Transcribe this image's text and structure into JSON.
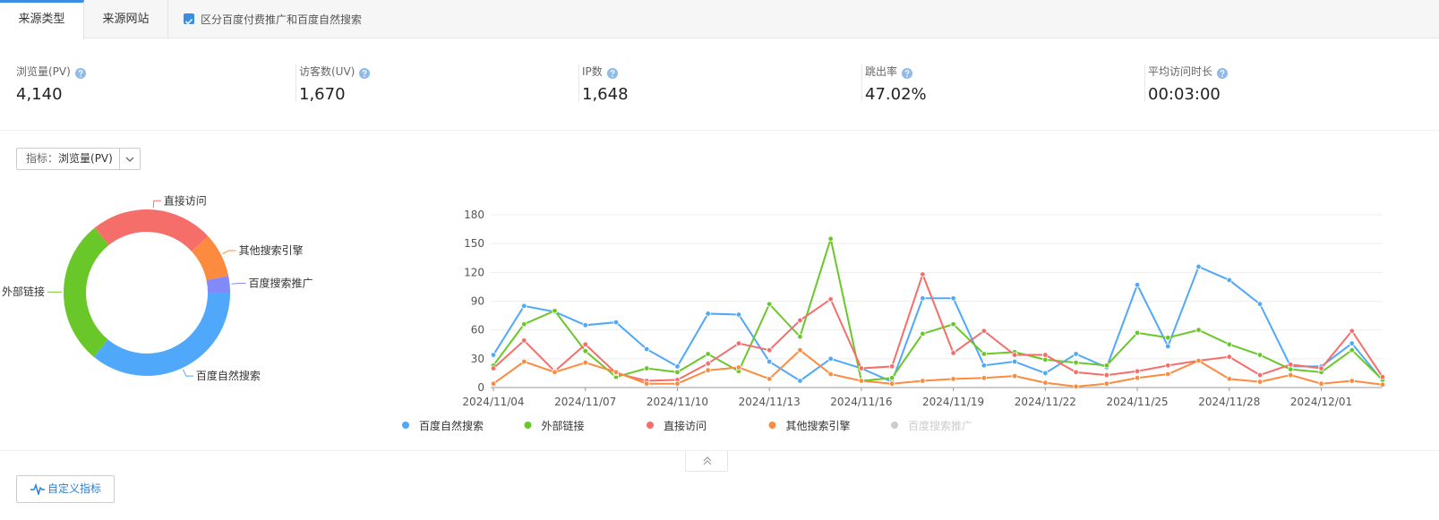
{
  "tabs": [
    "来源类型",
    "来源网站"
  ],
  "checkbox_label": "区分百度付费推广和百度自然搜索",
  "metrics": [
    {
      "label": "浏览量(PV)",
      "value": "4,140"
    },
    {
      "label": "访客数(UV)",
      "value": "1,670"
    },
    {
      "label": "IP数",
      "value": "1,648"
    },
    {
      "label": "跳出率",
      "value": "47.02%"
    },
    {
      "label": "平均访问时长",
      "value": "00:03:00"
    }
  ],
  "selector": {
    "label": "指标：",
    "value": "浏览量(PV)"
  },
  "custom_button": "自定义指标",
  "chart_data": [
    {
      "type": "pie",
      "categories": [
        "百度自然搜索",
        "外部链接",
        "直接访问",
        "其他搜索引擎",
        "百度搜索推广"
      ],
      "values": [
        1490,
        1170,
        990,
        355,
        135
      ],
      "colors": [
        "#4fa8f9",
        "#6ac72a",
        "#f56e6a",
        "#fc8b40",
        "#818af8"
      ]
    },
    {
      "type": "line",
      "categories": [
        "2024/11/04",
        null,
        null,
        "2024/11/07",
        null,
        null,
        "2024/11/10",
        null,
        null,
        "2024/11/13",
        null,
        null,
        "2024/11/16",
        null,
        null,
        "2024/11/19",
        null,
        null,
        "2024/11/22",
        null,
        null,
        "2024/11/25",
        null,
        null,
        "2024/11/28",
        null,
        null,
        "2024/12/01",
        null,
        null
      ],
      "ylim": [
        0,
        180
      ],
      "yticks": [
        0,
        30,
        60,
        90,
        120,
        150,
        180
      ],
      "grid": true,
      "series": [
        {
          "name": "百度自然搜索",
          "color": "#4fa8f9",
          "visible": true,
          "values": [
            34,
            85,
            79,
            65,
            68,
            40,
            22,
            77,
            76,
            27,
            7,
            30,
            20,
            6,
            93,
            93,
            23,
            27,
            15,
            35,
            21,
            107,
            43,
            126,
            112,
            87,
            22,
            22,
            46,
            7
          ]
        },
        {
          "name": "外部链接",
          "color": "#6ac72a",
          "visible": true,
          "values": [
            23,
            66,
            80,
            38,
            11,
            20,
            16,
            35,
            17,
            87,
            53,
            155,
            7,
            10,
            56,
            66,
            35,
            37,
            29,
            26,
            23,
            57,
            52,
            60,
            45,
            34,
            19,
            16,
            39,
            8
          ]
        },
        {
          "name": "直接访问",
          "color": "#f56e6a",
          "visible": true,
          "values": [
            20,
            49,
            17,
            45,
            15,
            7,
            8,
            25,
            46,
            39,
            70,
            92,
            20,
            22,
            118,
            36,
            59,
            34,
            34,
            16,
            13,
            17,
            23,
            28,
            32,
            13,
            24,
            20,
            59,
            11
          ]
        },
        {
          "name": "其他搜索引擎",
          "color": "#fc8b40",
          "visible": true,
          "values": [
            4,
            27,
            16,
            26,
            16,
            4,
            4,
            18,
            21,
            9,
            39,
            14,
            7,
            4,
            7,
            9,
            10,
            12,
            5,
            1,
            4,
            10,
            14,
            28,
            9,
            6,
            13,
            4,
            7,
            3
          ]
        },
        {
          "name": "百度搜索推广",
          "color": "#818af8",
          "visible": false
        }
      ]
    }
  ]
}
